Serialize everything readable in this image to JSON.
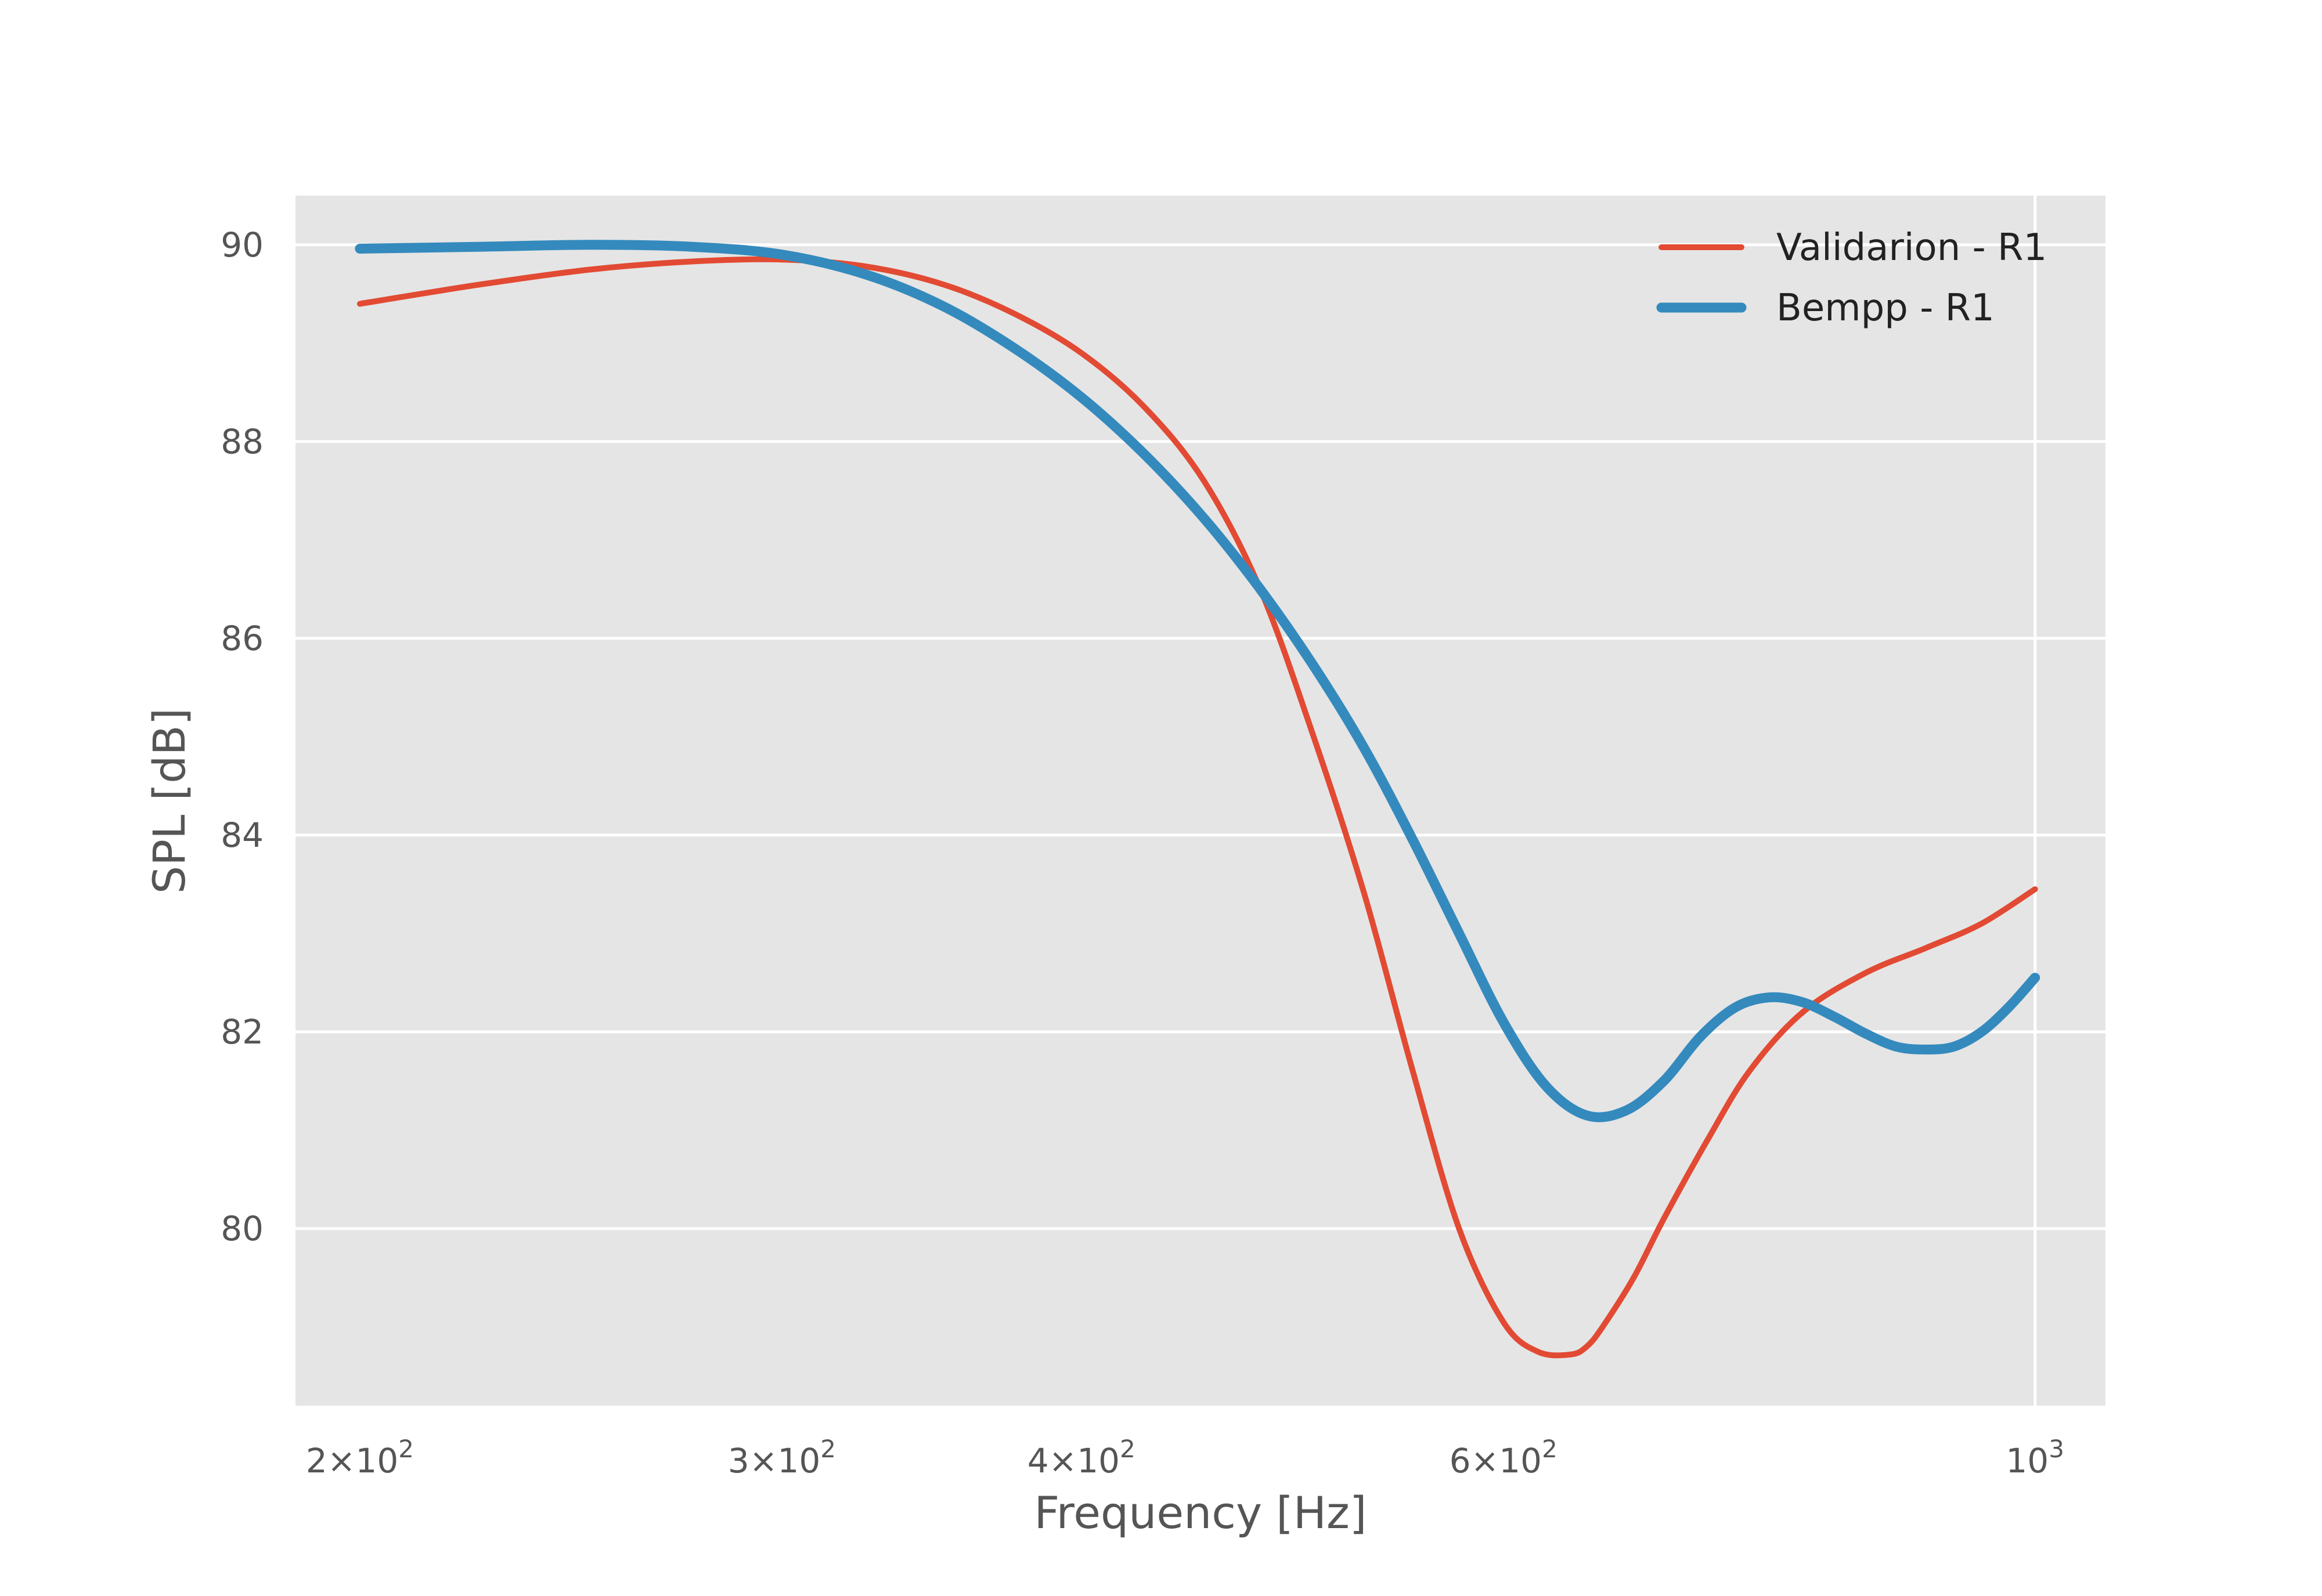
{
  "chart_data": {
    "type": "line",
    "xlabel": "Frequency [Hz]",
    "ylabel": "SPL [dB]",
    "xscale": "log",
    "xlim": [
      188,
      1070
    ],
    "ylim": [
      78.2,
      90.5
    ],
    "grid": true,
    "legend_position": "top-right",
    "background_color": "#e5e5e5",
    "grid_color": "#ffffff",
    "x_ticks": [
      {
        "value": 200,
        "mantissa": "2",
        "base": "10",
        "exp": "2"
      },
      {
        "value": 300,
        "mantissa": "3",
        "base": "10",
        "exp": "2"
      },
      {
        "value": 400,
        "mantissa": "4",
        "base": "10",
        "exp": "2"
      },
      {
        "value": 600,
        "mantissa": "6",
        "base": "10",
        "exp": "2"
      },
      {
        "value": 1000,
        "mantissa": "",
        "base": "10",
        "exp": "3"
      }
    ],
    "y_ticks": [
      {
        "value": 80,
        "label": "80"
      },
      {
        "value": 82,
        "label": "82"
      },
      {
        "value": 84,
        "label": "84"
      },
      {
        "value": 86,
        "label": "86"
      },
      {
        "value": 88,
        "label": "88"
      },
      {
        "value": 90,
        "label": "90"
      }
    ],
    "series": [
      {
        "name": "Validarion - R1",
        "color": "#e24a33",
        "width": "thin",
        "x": [
          200,
          225,
          250,
          275,
          300,
          325,
          350,
          375,
          400,
          425,
          450,
          475,
          500,
          525,
          550,
          575,
          600,
          620,
          640,
          650,
          660,
          680,
          700,
          730,
          760,
          800,
          850,
          900,
          950,
          1000
        ],
        "y": [
          89.4,
          89.6,
          89.75,
          89.83,
          89.85,
          89.78,
          89.6,
          89.3,
          88.9,
          88.35,
          87.6,
          86.5,
          85.0,
          83.4,
          81.6,
          80.0,
          79.05,
          78.75,
          78.72,
          78.8,
          79.0,
          79.5,
          80.1,
          80.9,
          81.6,
          82.2,
          82.6,
          82.85,
          83.1,
          83.45
        ]
      },
      {
        "name": "Bempp - R1",
        "color": "#348abd",
        "width": "thick",
        "x": [
          200,
          225,
          250,
          275,
          300,
          325,
          350,
          375,
          400,
          425,
          450,
          475,
          500,
          525,
          550,
          575,
          600,
          625,
          650,
          675,
          700,
          725,
          750,
          775,
          800,
          825,
          850,
          875,
          900,
          925,
          950,
          975,
          1000
        ],
        "y": [
          89.96,
          89.98,
          90.0,
          89.98,
          89.9,
          89.7,
          89.38,
          88.95,
          88.45,
          87.87,
          87.22,
          86.5,
          85.72,
          84.88,
          83.95,
          83.0,
          82.1,
          81.45,
          81.15,
          81.2,
          81.5,
          81.95,
          82.25,
          82.35,
          82.3,
          82.15,
          81.98,
          81.85,
          81.82,
          81.85,
          82.0,
          82.25,
          82.55
        ]
      }
    ]
  }
}
